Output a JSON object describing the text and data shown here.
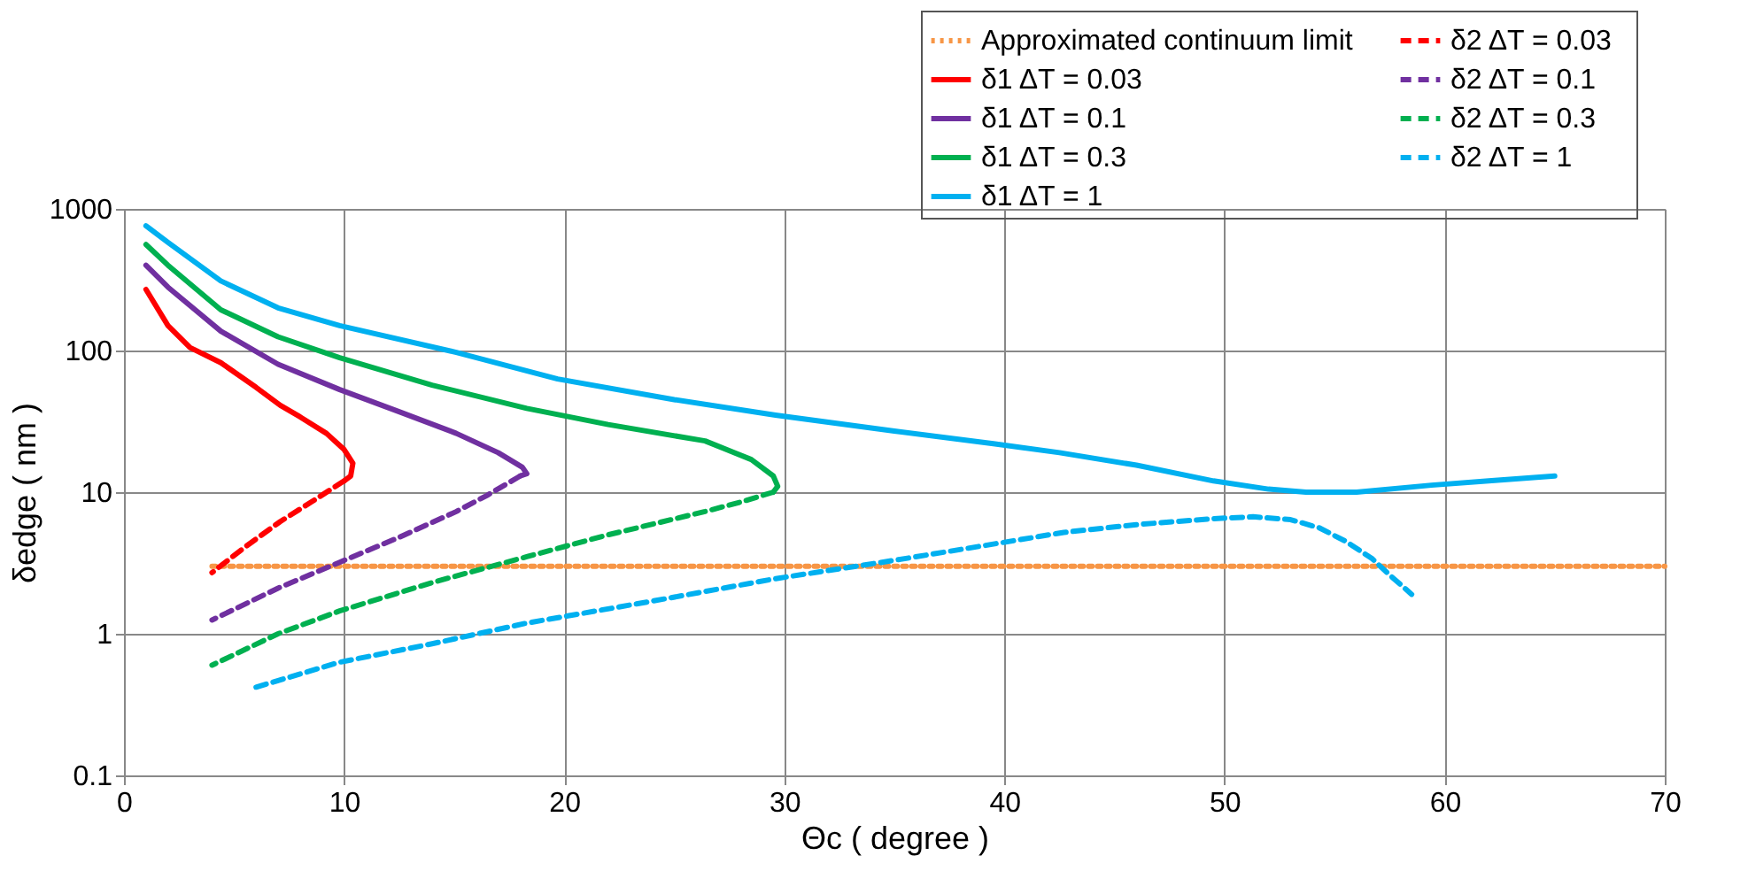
{
  "chart_data": {
    "type": "line",
    "xlabel": "Θc ( degree )",
    "ylabel": "δedge ( nm )",
    "xlim": [
      0,
      70
    ],
    "xticks": [
      0,
      10,
      20,
      30,
      40,
      50,
      60,
      70
    ],
    "ylim": [
      0.1,
      1000
    ],
    "yticks": [
      0.1,
      1,
      10,
      100,
      1000
    ],
    "log": "y",
    "grid": true,
    "legend": "top right",
    "series": [
      {
        "name": "Approximated continuum limit",
        "color": "#f79646",
        "line_style": "dotted",
        "x": [
          4,
          70
        ],
        "values": [
          3,
          3
        ]
      },
      {
        "name": "δ1   ΔT = 0.03",
        "color": "#ff0000",
        "line_style": "solid",
        "x": [
          1,
          2,
          3,
          4.4,
          6,
          7.1,
          8,
          9.2,
          10,
          10.4,
          10.3,
          10
        ],
        "values": [
          270,
          150,
          105,
          82,
          55,
          41,
          34,
          26,
          20,
          16,
          13,
          12
        ]
      },
      {
        "name": "δ1   ΔT = 0.1",
        "color": "#7030a0",
        "line_style": "solid",
        "x": [
          1,
          2,
          4.4,
          7,
          9.8,
          12.5,
          15.1,
          17,
          18.1,
          18.3,
          18
        ],
        "values": [
          400,
          280,
          137,
          80,
          53,
          37,
          26,
          19,
          15,
          13.5,
          13
        ]
      },
      {
        "name": "δ1  ΔT = 0.3",
        "color": "#00b050",
        "line_style": "solid",
        "x": [
          1,
          2,
          4.4,
          7,
          9.8,
          14,
          18.3,
          22,
          26.4,
          28.5,
          29.5,
          29.7,
          29.5
        ],
        "values": [
          560,
          400,
          194,
          125,
          89,
          57,
          39,
          30,
          23,
          17,
          13,
          11,
          10
        ]
      },
      {
        "name": "δ1  ΔT = 1",
        "color": "#00b0f0",
        "line_style": "solid",
        "x": [
          1,
          2,
          4.4,
          7,
          9.8,
          15.1,
          19.7,
          25,
          29.6,
          35,
          39.5,
          42.5,
          46,
          49.5,
          52,
          53.7,
          56,
          59.4,
          62,
          65
        ],
        "values": [
          760,
          580,
          310,
          200,
          150,
          97,
          63,
          45,
          35,
          27,
          22,
          19,
          15.5,
          12,
          10.5,
          10,
          10,
          11.2,
          12,
          13
        ]
      },
      {
        "name": "δ2   ΔT = 0.03",
        "color": "#ff0000",
        "line_style": "dashed",
        "x": [
          10,
          8.5,
          7.1,
          5.5,
          4
        ],
        "values": [
          12,
          8.5,
          6.2,
          4.1,
          2.7
        ]
      },
      {
        "name": "δ2   ΔT = 0.1",
        "color": "#7030a0",
        "line_style": "dashed",
        "x": [
          18,
          16.5,
          15.1,
          12.5,
          9.8,
          7,
          4
        ],
        "values": [
          13,
          9.5,
          7.3,
          4.8,
          3.2,
          2.1,
          1.25
        ]
      },
      {
        "name": "δ2  ΔT = 0.3",
        "color": "#00b050",
        "line_style": "dashed",
        "x": [
          29.5,
          28,
          26.4,
          22,
          18.3,
          14,
          9.8,
          7,
          4
        ],
        "values": [
          10,
          8.5,
          7.3,
          5,
          3.5,
          2.3,
          1.45,
          1,
          0.6
        ]
      },
      {
        "name": "δ2  ΔT = 1",
        "color": "#00b0f0",
        "line_style": "dashed",
        "x": [
          6,
          9.8,
          14,
          18.3,
          24,
          29.6,
          35,
          39.5,
          42.7,
          46,
          49.5,
          51.3,
          53,
          54.3,
          55.5,
          56.7,
          57.5,
          58.5
        ],
        "values": [
          0.42,
          0.63,
          0.85,
          1.19,
          1.7,
          2.45,
          3.3,
          4.3,
          5.2,
          5.9,
          6.5,
          6.7,
          6.4,
          5.6,
          4.5,
          3.4,
          2.6,
          1.9
        ]
      }
    ]
  }
}
